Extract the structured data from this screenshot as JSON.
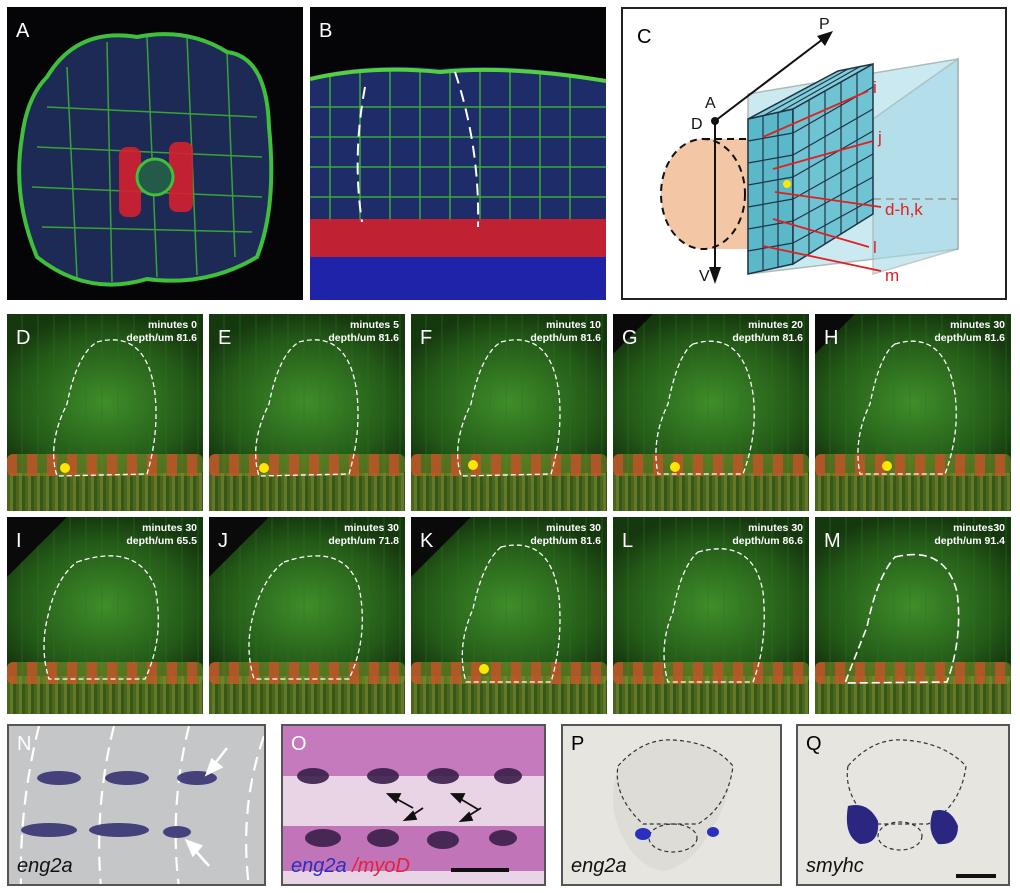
{
  "panels": {
    "A": {
      "label": "A"
    },
    "B": {
      "label": "B"
    },
    "C": {
      "label": "C",
      "axes": {
        "P": "P",
        "A": "A",
        "D": "D",
        "V": "V"
      },
      "planes": [
        "i",
        "j",
        "d-h,k",
        "l",
        "m"
      ]
    },
    "D": {
      "label": "D",
      "time": "minutes 0",
      "depth": "depth/um 81.6"
    },
    "E": {
      "label": "E",
      "time": "minutes 5",
      "depth": "depth/um 81.6"
    },
    "F": {
      "label": "F",
      "time": "minutes 10",
      "depth": "depth/um 81.6"
    },
    "G": {
      "label": "G",
      "time": "minutes 20",
      "depth": "depth/um 81.6"
    },
    "H": {
      "label": "H",
      "time": "minutes 30",
      "depth": "depth/um 81.6"
    },
    "I": {
      "label": "I",
      "time": "minutes 30",
      "depth": "depth/um 65.5"
    },
    "J": {
      "label": "J",
      "time": "minutes 30",
      "depth": "depth/um 71.8"
    },
    "K": {
      "label": "K",
      "time": "minutes 30",
      "depth": "depth/um 81.6"
    },
    "L": {
      "label": "L",
      "time": "minutes 30",
      "depth": "depth/um 86.6"
    },
    "M": {
      "label": "M",
      "time": "minutes30",
      "depth": "depth/um 91.4"
    },
    "N": {
      "label": "N",
      "gene": "eng2a"
    },
    "O": {
      "label": "O",
      "gene1": "eng2a",
      "gene2": "/myoD"
    },
    "P": {
      "label": "P",
      "gene": "eng2a"
    },
    "Q": {
      "label": "Q",
      "gene": "smyhc"
    }
  },
  "colors": {
    "green": "#3fa32b",
    "red": "#e8203a",
    "blue": "#2a2fbf",
    "yellow": "#ffe600",
    "peach": "#f3c7a6",
    "cyan": "#9fd6e3"
  }
}
